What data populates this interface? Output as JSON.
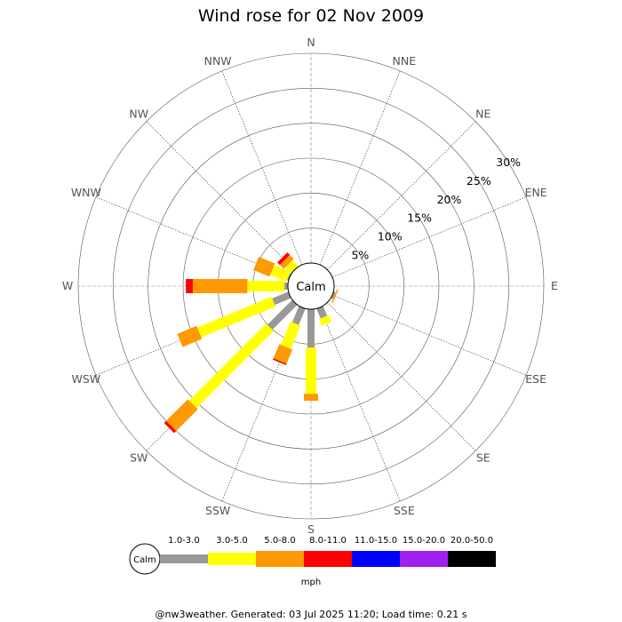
{
  "chart_data": {
    "type": "polar-bar",
    "title": "Wind rose for 02 Nov 2009",
    "directions": [
      "N",
      "NNE",
      "NE",
      "ENE",
      "E",
      "ESE",
      "SE",
      "SSE",
      "S",
      "SSW",
      "SW",
      "WSW",
      "W",
      "WNW",
      "NW",
      "NNW"
    ],
    "radial_ticks": [
      "5%",
      "10%",
      "15%",
      "20%",
      "25%",
      "30%"
    ],
    "radial_max_percent": 30,
    "center_label": "Calm",
    "unit": "mph",
    "bins": [
      {
        "label": "1.0-3.0",
        "color": "#999999"
      },
      {
        "label": "3.0-5.0",
        "color": "#ffff00"
      },
      {
        "label": "5.0-8.0",
        "color": "#ff9900"
      },
      {
        "label": "8.0-11.0",
        "color": "#ff0000"
      },
      {
        "label": "11.0-15.0",
        "color": "#0000ff"
      },
      {
        "label": "15.0-20.0",
        "color": "#a020f0"
      },
      {
        "label": "20.0-50.0",
        "color": "#000000"
      }
    ],
    "series": [
      {
        "direction": "SSE",
        "values": [
          1.5,
          1.0,
          0.0,
          0.0,
          0.0,
          0.0,
          0.0
        ]
      },
      {
        "direction": "ESE",
        "values": [
          0.3,
          0.0,
          0.2,
          0.0,
          0.0,
          0.0,
          0.0
        ]
      },
      {
        "direction": "S",
        "values": [
          5.5,
          6.6,
          1.0,
          0.0,
          0.0,
          0.0,
          0.0
        ]
      },
      {
        "direction": "SSW",
        "values": [
          2.5,
          3.6,
          2.2,
          0.2,
          0.0,
          0.0,
          0.0
        ]
      },
      {
        "direction": "SW",
        "values": [
          5.0,
          15.6,
          4.4,
          0.4,
          0.0,
          0.0,
          0.0
        ]
      },
      {
        "direction": "WSW",
        "values": [
          2.5,
          11.5,
          3.0,
          0.0,
          0.0,
          0.0,
          0.0
        ]
      },
      {
        "direction": "W",
        "values": [
          0.5,
          5.3,
          7.8,
          1.0,
          0.0,
          0.0,
          0.0
        ]
      },
      {
        "direction": "WNW",
        "values": [
          0.2,
          2.5,
          2.5,
          0.0,
          0.0,
          0.0,
          0.0
        ]
      },
      {
        "direction": "NW",
        "values": [
          0.0,
          1.2,
          0.8,
          0.5,
          0.0,
          0.0,
          0.0
        ]
      },
      {
        "direction": "NNW",
        "values": [
          0.0,
          0.0,
          0.0,
          0.0,
          0.0,
          0.0,
          0.0
        ]
      }
    ]
  },
  "footer": "@nw3weather. Generated: 03 Jul 2025 11:20; Load time: 0.21 s"
}
